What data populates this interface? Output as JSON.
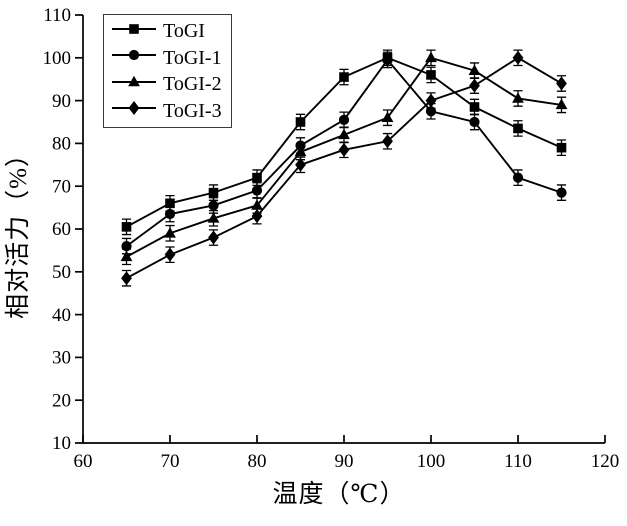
{
  "figure": {
    "background": "#ffffff",
    "foreground": "#000000"
  },
  "chart_data": {
    "type": "line",
    "title": "",
    "xlabel": "温度（℃）",
    "ylabel": "相对活力（%）",
    "x": [
      65,
      70,
      75,
      80,
      85,
      90,
      95,
      100,
      105,
      110,
      115
    ],
    "series": [
      {
        "name": "ToGI",
        "marker": "square",
        "color": "#000000",
        "values": [
          60.5,
          66,
          68.5,
          72,
          85,
          95.5,
          100,
          96,
          88.5,
          83.5,
          79
        ],
        "err": 1.8
      },
      {
        "name": "ToGI-1",
        "marker": "circle",
        "color": "#000000",
        "values": [
          56,
          63.5,
          65.5,
          69,
          79.5,
          85.5,
          99.5,
          87.5,
          85,
          72,
          68.5
        ],
        "err": 1.8
      },
      {
        "name": "ToGI-2",
        "marker": "triangle",
        "color": "#000000",
        "values": [
          53.5,
          59,
          62.5,
          65.5,
          78,
          82,
          86,
          100,
          97,
          90.5,
          89
        ],
        "err": 1.8
      },
      {
        "name": "ToGI-3",
        "marker": "diamond",
        "color": "#000000",
        "values": [
          48.5,
          54,
          58,
          63,
          75,
          78.5,
          80.5,
          90,
          93.5,
          100,
          94
        ],
        "err": 1.8
      }
    ],
    "xlim": [
      60,
      120
    ],
    "ylim": [
      10,
      110
    ],
    "x_ticks": [
      60,
      70,
      80,
      90,
      100,
      110,
      120
    ],
    "y_ticks": [
      10,
      20,
      30,
      40,
      50,
      60,
      70,
      80,
      90,
      100,
      110
    ],
    "grid": false,
    "error_bars": true,
    "legend_position": "top-left"
  }
}
